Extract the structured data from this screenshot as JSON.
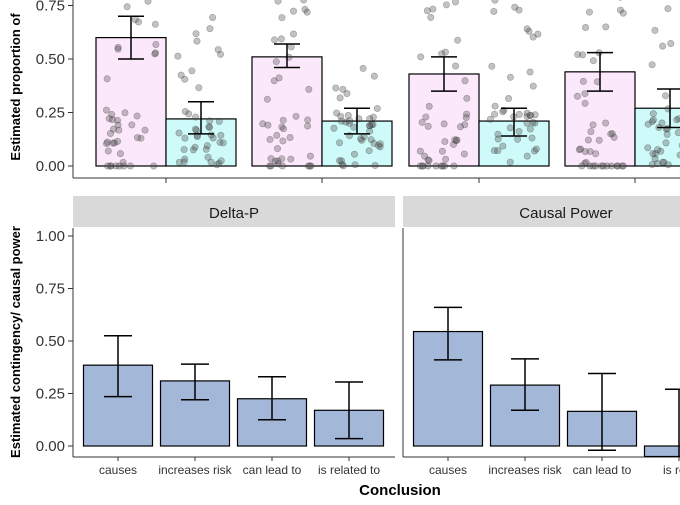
{
  "chart_data": [
    {
      "type": "bar",
      "panel": "top",
      "ylabel": "Estimated proportion of",
      "ylim": [
        0,
        0.8
      ],
      "yticks": [
        "0.00",
        "0.25",
        "0.50",
        "0.75"
      ],
      "grid": false,
      "groups": [
        {
          "bars": [
            {
              "value": 0.6,
              "err_low": 0.5,
              "err_high": 0.7,
              "fill": "#fce8fb"
            },
            {
              "value": 0.22,
              "err_low": 0.15,
              "err_high": 0.3,
              "fill": "#cefaf9"
            }
          ]
        },
        {
          "bars": [
            {
              "value": 0.51,
              "err_low": 0.46,
              "err_high": 0.57,
              "fill": "#fce8fb"
            },
            {
              "value": 0.21,
              "err_low": 0.15,
              "err_high": 0.27,
              "fill": "#cefaf9"
            }
          ]
        },
        {
          "bars": [
            {
              "value": 0.43,
              "err_low": 0.35,
              "err_high": 0.51,
              "fill": "#fce8fb"
            },
            {
              "value": 0.21,
              "err_low": 0.14,
              "err_high": 0.27,
              "fill": "#cefaf9"
            }
          ]
        },
        {
          "bars": [
            {
              "value": 0.44,
              "err_low": 0.35,
              "err_high": 0.53,
              "fill": "#fce8fb"
            },
            {
              "value": 0.27,
              "err_low": 0.18,
              "err_high": 0.36,
              "fill": "#cefaf9"
            }
          ]
        }
      ]
    },
    {
      "type": "bar",
      "panel": "bottom",
      "xlabel": "Conclusion",
      "ylabel": "Estimated contingency/ causal power",
      "ylim": [
        0,
        1
      ],
      "yticks": [
        "0.00",
        "0.25",
        "0.50",
        "0.75",
        "1.00"
      ],
      "grid": false,
      "bar_color": "#a3b8d9",
      "facets": [
        {
          "title": "Delta-P",
          "categories": [
            "causes",
            "increases risk",
            "can lead to",
            "is related to"
          ],
          "values": [
            0.385,
            0.31,
            0.225,
            0.17
          ],
          "err_low": [
            0.235,
            0.22,
            0.125,
            0.035
          ],
          "err_high": [
            0.525,
            0.39,
            0.33,
            0.305
          ]
        },
        {
          "title": "Causal Power",
          "categories": [
            "causes",
            "increases risk",
            "can lead to",
            "is rela"
          ],
          "values": [
            0.545,
            0.29,
            0.165,
            -0.05
          ],
          "err_low": [
            0.41,
            0.17,
            -0.02,
            null
          ],
          "err_high": [
            0.66,
            0.415,
            0.345,
            0.27
          ]
        }
      ]
    }
  ]
}
